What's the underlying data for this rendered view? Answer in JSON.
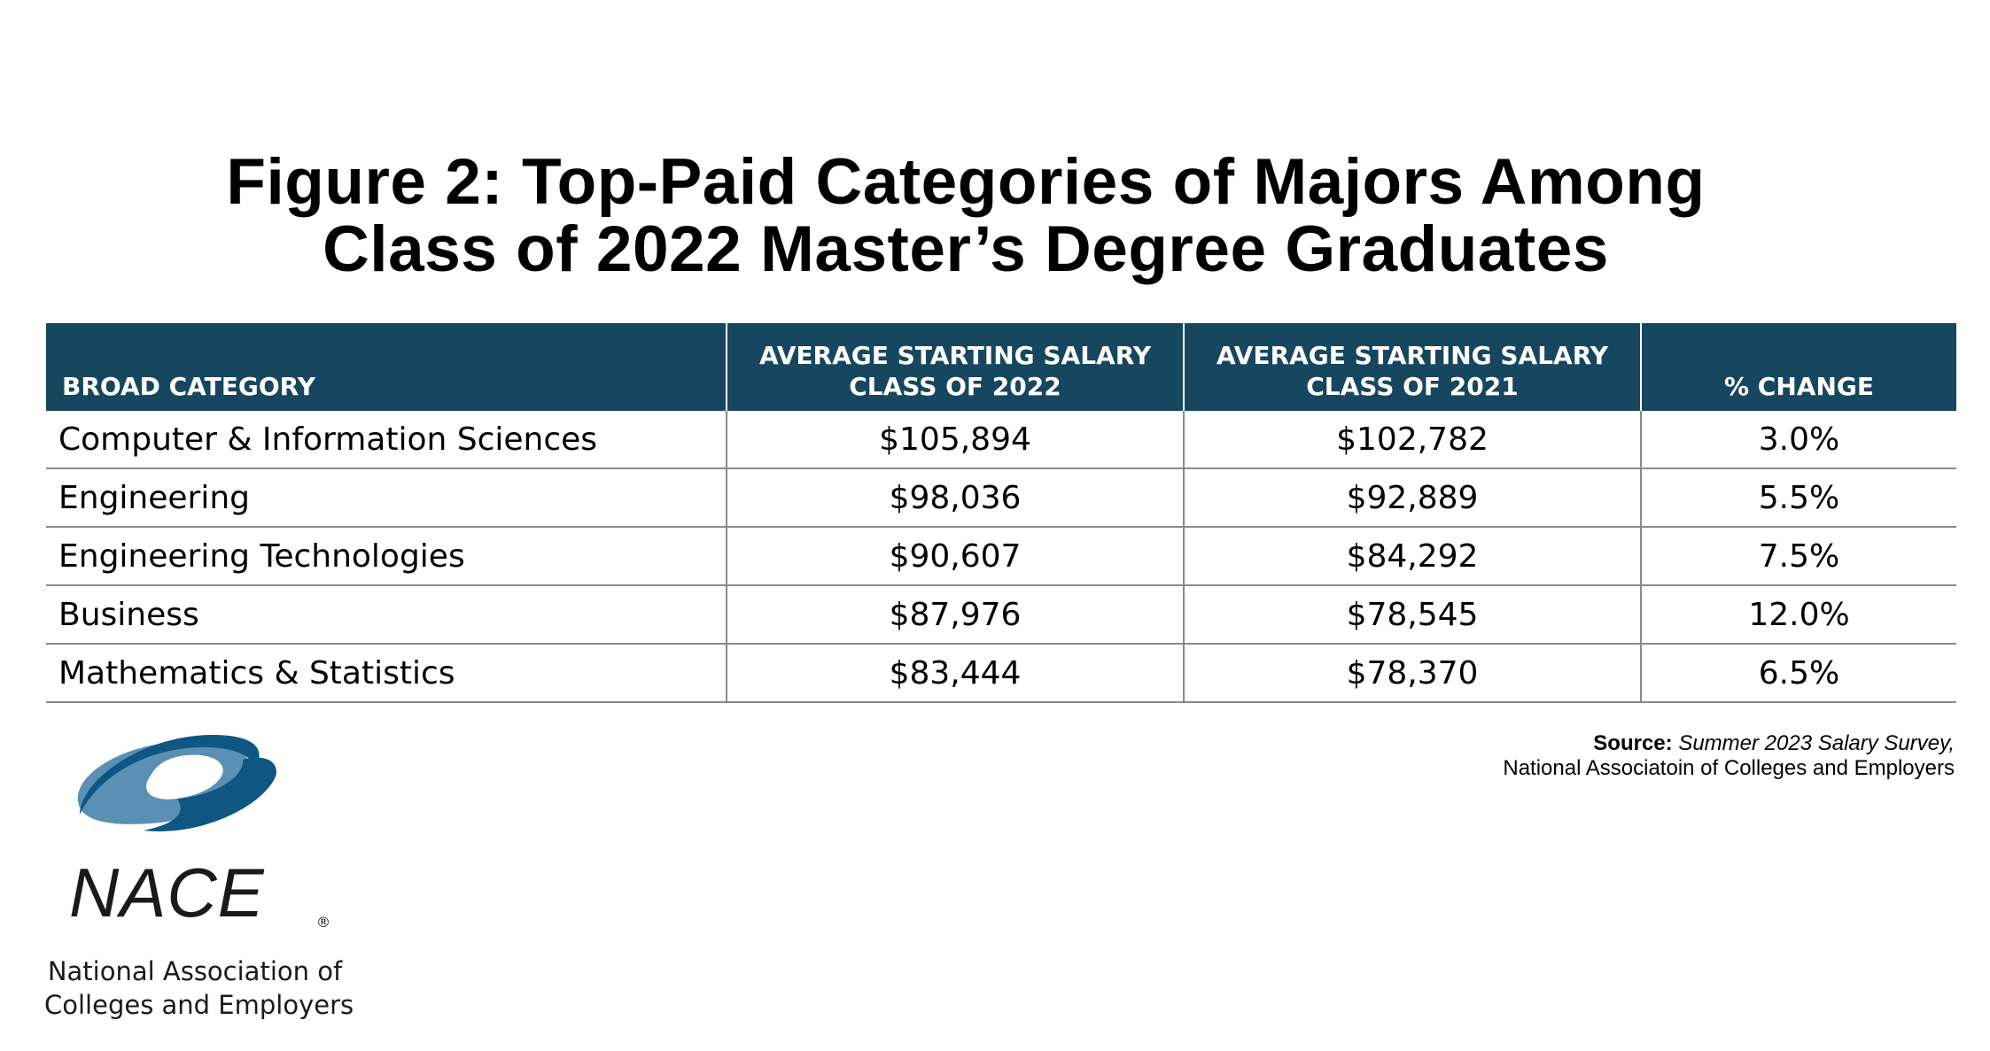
{
  "chart_data": {
    "type": "table",
    "title_lines": [
      "Figure 2: Top-Paid Categories of Majors Among",
      "Class of 2022 Master’s Degree Graduates"
    ],
    "columns": [
      {
        "lines": [
          "BROAD CATEGORY"
        ]
      },
      {
        "lines": [
          "AVERAGE STARTING SALARY",
          "CLASS OF 2022"
        ]
      },
      {
        "lines": [
          "AVERAGE STARTING SALARY",
          "CLASS OF 2021"
        ]
      },
      {
        "lines": [
          "% CHANGE"
        ]
      }
    ],
    "rows": [
      [
        "Computer & Information Sciences",
        "$105,894",
        "$102,782",
        "3.0%"
      ],
      [
        "Engineering",
        "$98,036",
        "$92,889",
        "5.5%"
      ],
      [
        "Engineering Technologies",
        "$90,607",
        "$84,292",
        "7.5%"
      ],
      [
        "Business",
        "$87,976",
        "$78,545",
        "12.0%"
      ],
      [
        "Mathematics & Statistics",
        "$83,444",
        "$78,370",
        "6.5%"
      ]
    ]
  },
  "source": {
    "label": "Source:",
    "title": "Summer 2023 Salary Survey,",
    "publisher": "National Associatoin of Colleges and Employers"
  },
  "logo": {
    "name": "NACE",
    "reg": "®",
    "org_lines": [
      "National Association of",
      "Colleges and Employers"
    ]
  },
  "colors": {
    "header_bg": "#17475e",
    "logo_dark_blue": "#0f5782",
    "logo_light_blue": "#5b90b5"
  }
}
